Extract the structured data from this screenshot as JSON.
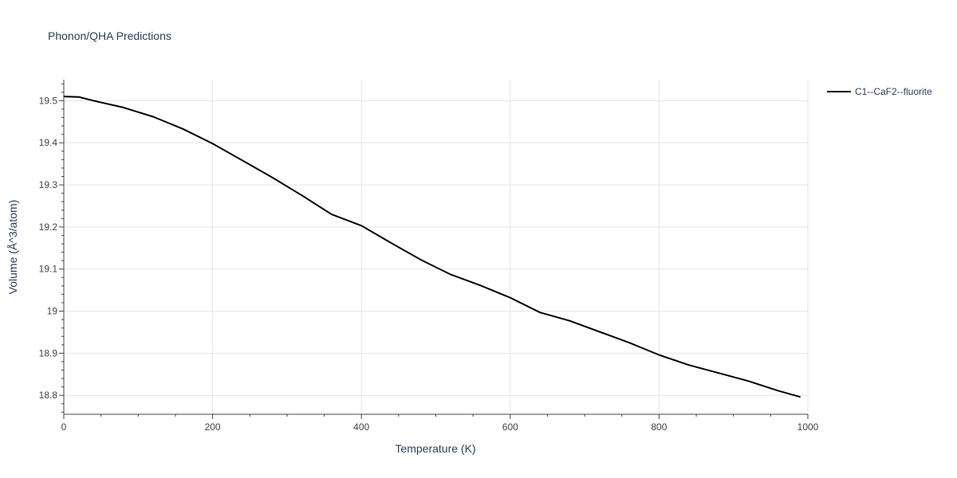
{
  "chart_data": {
    "type": "line",
    "title": "Phonon/QHA Predictions",
    "xlabel": "Temperature (K)",
    "ylabel": "Volume (Å^3/atom)",
    "xlim": [
      0,
      1000
    ],
    "ylim": [
      18.755,
      19.55
    ],
    "x_ticks": [
      0,
      200,
      400,
      600,
      800,
      1000
    ],
    "x_tick_labels": [
      "0",
      "200",
      "400",
      "600",
      "800",
      "1000"
    ],
    "y_ticks": [
      18.8,
      18.9,
      19.0,
      19.1,
      19.2,
      19.3,
      19.4,
      19.5
    ],
    "y_tick_labels": [
      "18.8",
      "18.9",
      "19",
      "19.1",
      "19.2",
      "19.3",
      "19.4",
      "19.5"
    ],
    "grid": true,
    "legend_position": "top-right",
    "series": [
      {
        "name": "C1--CaF2--fluorite",
        "color": "#000000",
        "x": [
          0,
          20,
          40,
          80,
          120,
          160,
          200,
          240,
          280,
          320,
          360,
          400,
          440,
          480,
          520,
          560,
          600,
          640,
          680,
          720,
          760,
          800,
          840,
          880,
          920,
          960,
          990
        ],
        "y": [
          19.51,
          19.509,
          19.5,
          19.484,
          19.462,
          19.433,
          19.398,
          19.358,
          19.318,
          19.275,
          19.23,
          19.203,
          19.162,
          19.122,
          19.087,
          19.061,
          19.032,
          18.997,
          18.977,
          18.951,
          18.925,
          18.896,
          18.872,
          18.853,
          18.834,
          18.811,
          18.796
        ]
      }
    ]
  }
}
